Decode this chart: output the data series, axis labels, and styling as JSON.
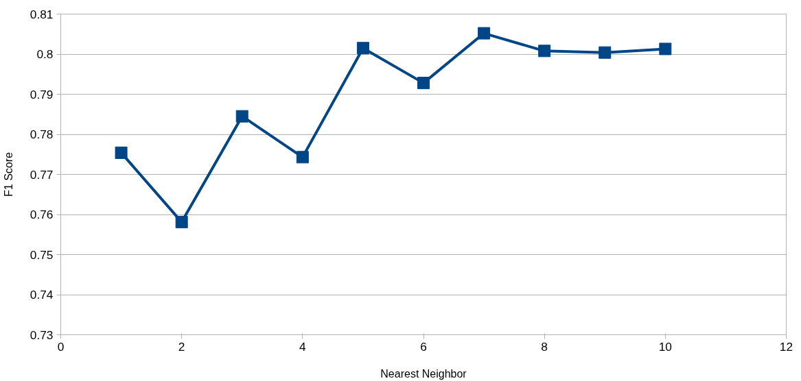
{
  "chart_data": {
    "type": "line",
    "xlabel": "Nearest Neighbor",
    "ylabel": "F1 Score",
    "x": [
      1,
      2,
      3,
      4,
      5,
      6,
      7,
      8,
      9,
      10
    ],
    "series": [
      {
        "color": "#004586",
        "values": [
          0.7754,
          0.7581,
          0.7845,
          0.7743,
          0.8015,
          0.7928,
          0.8052,
          0.8008,
          0.8004,
          0.8013
        ]
      }
    ],
    "xlim": [
      0,
      12
    ],
    "xticks": [
      0,
      2,
      4,
      6,
      8,
      10,
      12
    ],
    "ylim": [
      0.73,
      0.81
    ],
    "yticks": [
      0.73,
      0.74,
      0.75,
      0.76,
      0.77,
      0.78,
      0.79,
      0.8,
      0.81
    ],
    "grid": "y",
    "marker": "square",
    "line_style": "solid"
  }
}
